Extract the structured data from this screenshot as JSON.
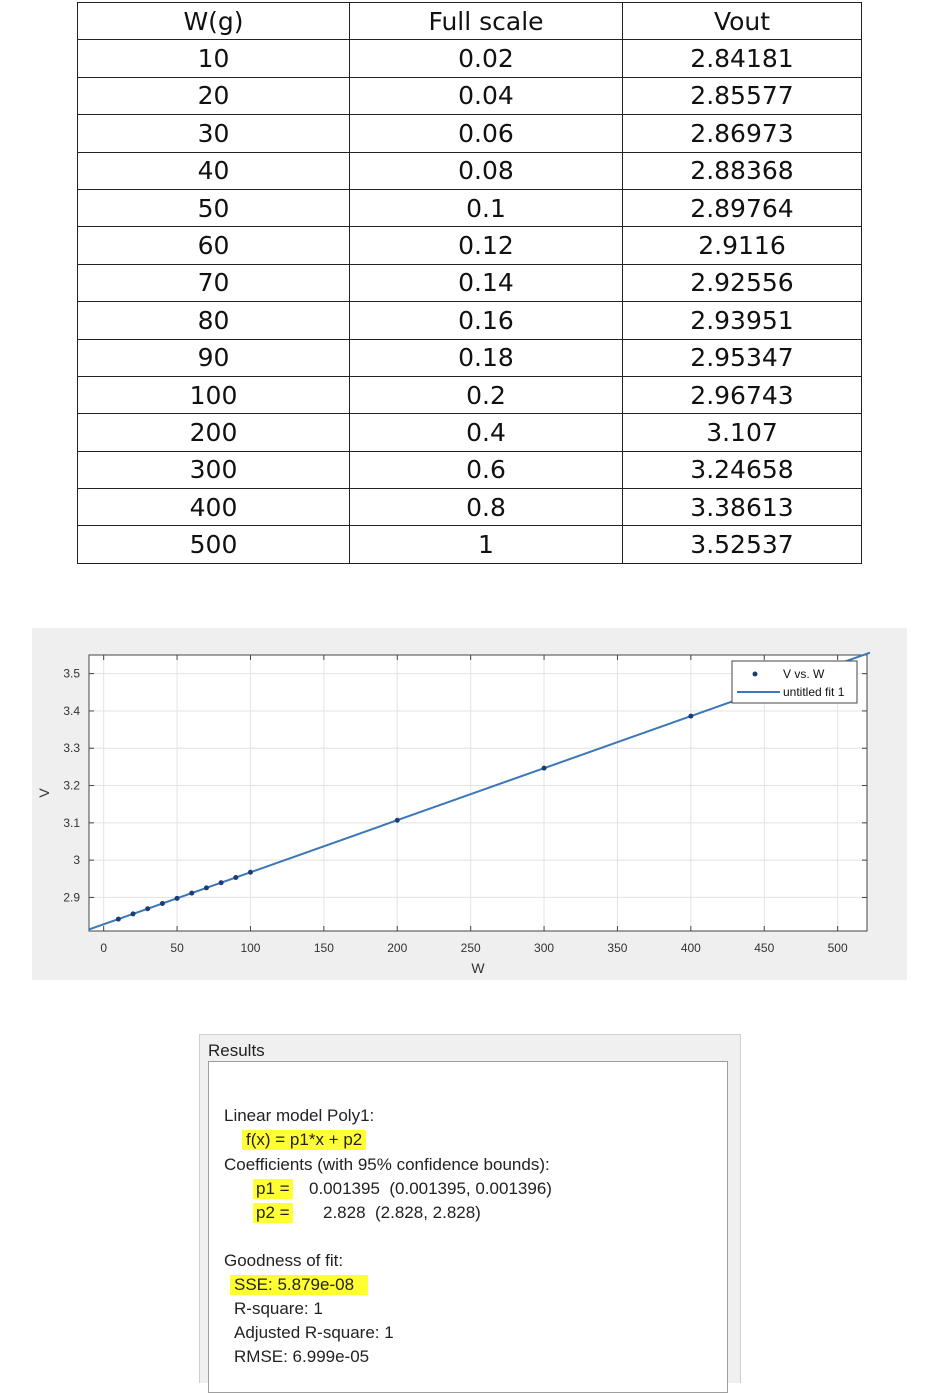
{
  "table": {
    "headers": [
      "W(g)",
      "Full scale",
      "Vout"
    ],
    "rows": [
      [
        "10",
        "0.02",
        "2.84181"
      ],
      [
        "20",
        "0.04",
        "2.85577"
      ],
      [
        "30",
        "0.06",
        "2.86973"
      ],
      [
        "40",
        "0.08",
        "2.88368"
      ],
      [
        "50",
        "0.1",
        "2.89764"
      ],
      [
        "60",
        "0.12",
        "2.9116"
      ],
      [
        "70",
        "0.14",
        "2.92556"
      ],
      [
        "80",
        "0.16",
        "2.93951"
      ],
      [
        "90",
        "0.18",
        "2.95347"
      ],
      [
        "100",
        "0.2",
        "2.96743"
      ],
      [
        "200",
        "0.4",
        "3.107"
      ],
      [
        "300",
        "0.6",
        "3.24658"
      ],
      [
        "400",
        "0.8",
        "3.38613"
      ],
      [
        "500",
        "1",
        "3.52537"
      ]
    ]
  },
  "chart_data": {
    "type": "scatter",
    "title": "",
    "xlabel": "W",
    "ylabel": "V",
    "xlim": [
      -10,
      520
    ],
    "ylim": [
      2.81,
      3.55
    ],
    "xticks": [
      0,
      50,
      100,
      150,
      200,
      250,
      300,
      350,
      400,
      450,
      500
    ],
    "yticks": [
      2.9,
      3,
      3.1,
      3.2,
      3.3,
      3.4,
      3.5
    ],
    "ytick_labels": [
      "2.9",
      "3",
      "3.1",
      "3.2",
      "3.3",
      "3.4",
      "3.5"
    ],
    "grid": true,
    "legend_position": "top-right",
    "series": [
      {
        "name": "V vs. W",
        "kind": "points",
        "color": "#1f3b73",
        "x": [
          10,
          20,
          30,
          40,
          50,
          60,
          70,
          80,
          90,
          100,
          200,
          300,
          400,
          500
        ],
        "y": [
          2.84181,
          2.85577,
          2.86973,
          2.88368,
          2.89764,
          2.9116,
          2.92556,
          2.93951,
          2.95347,
          2.96743,
          3.107,
          3.24658,
          3.38613,
          3.52537
        ]
      },
      {
        "name": "untitled fit 1",
        "kind": "line",
        "color": "#3b78b8",
        "slope": 0.001395,
        "intercept": 2.828
      }
    ]
  },
  "results": {
    "title": "Results",
    "model": "Linear model Poly1:",
    "formula": "f(x) = p1*x + p2",
    "coeff_header": "Coefficients (with 95% confidence bounds):",
    "p1_label": "p1 =",
    "p1_value": "0.001395  (0.001395, 0.001396)",
    "p2_label": "p2 =",
    "p2_value": "2.828  (2.828, 2.828)",
    "gof_header": "Goodness of fit:",
    "sse": "SSE: 5.879e-08",
    "rsquare": "R-square: 1",
    "adj_rsquare": "Adjusted R-square: 1",
    "rmse": "RMSE: 6.999e-05",
    "highlight_color": "#ffff33"
  }
}
